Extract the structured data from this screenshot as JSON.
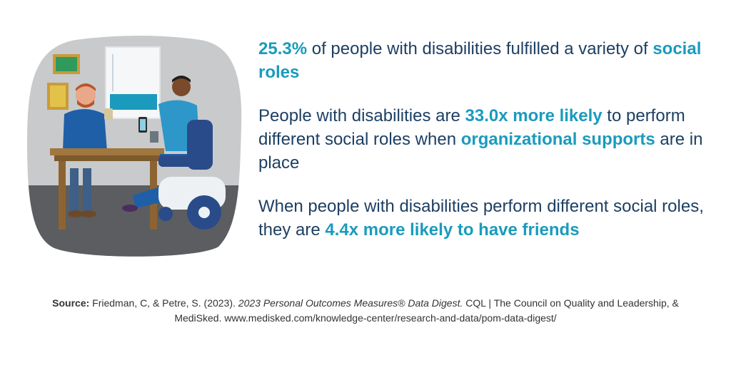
{
  "stats": [
    {
      "parts": [
        {
          "text": "25.3%",
          "highlight": true
        },
        {
          "text": " of people with disabilities fulfilled a variety of ",
          "highlight": false
        },
        {
          "text": "social roles",
          "highlight": true
        }
      ]
    },
    {
      "parts": [
        {
          "text": "People with disabilities are ",
          "highlight": false
        },
        {
          "text": "33.0x more likely",
          "highlight": true
        },
        {
          "text": " to perform different social roles when ",
          "highlight": false
        },
        {
          "text": "organizational supports",
          "highlight": true
        },
        {
          "text": " are in place",
          "highlight": false
        }
      ]
    },
    {
      "parts": [
        {
          "text": "When people with disabilities perform different social roles, they are ",
          "highlight": false
        },
        {
          "text": "4.4x more likely to have friends",
          "highlight": true
        }
      ]
    }
  ],
  "source": {
    "label": "Source:",
    "authors": " Friedman, C, & Petre, S. (2023). ",
    "title": "2023 Personal Outcomes Measures® Data Digest.",
    "rest": " CQL | The Council on Quality and Leadership, & MediSked. www.medisked.com/knowledge-center/research-and-data/pom-data-digest/"
  },
  "colors": {
    "highlight": "#1a9bbd",
    "text": "#1d3f63",
    "wall": "#c8cacc",
    "floor": "#5b5d60"
  },
  "illustration": {
    "icons": [
      "picture-frame-green-icon",
      "picture-frame-gold-icon",
      "window-blind-icon",
      "table-icon",
      "seated-man-icon",
      "wheelchair-user-icon",
      "power-wheelchair-icon",
      "smartphone-icon",
      "mug-icon"
    ]
  }
}
